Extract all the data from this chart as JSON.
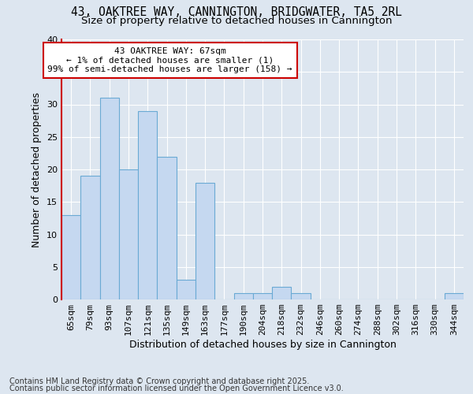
{
  "title_line1": "43, OAKTREE WAY, CANNINGTON, BRIDGWATER, TA5 2RL",
  "title_line2": "Size of property relative to detached houses in Cannington",
  "xlabel": "Distribution of detached houses by size in Cannington",
  "ylabel": "Number of detached properties",
  "categories": [
    "65sqm",
    "79sqm",
    "93sqm",
    "107sqm",
    "121sqm",
    "135sqm",
    "149sqm",
    "163sqm",
    "177sqm",
    "190sqm",
    "204sqm",
    "218sqm",
    "232sqm",
    "246sqm",
    "260sqm",
    "274sqm",
    "288sqm",
    "302sqm",
    "316sqm",
    "330sqm",
    "344sqm"
  ],
  "values": [
    13,
    19,
    31,
    20,
    29,
    22,
    3,
    18,
    0,
    1,
    1,
    2,
    1,
    0,
    0,
    0,
    0,
    0,
    0,
    0,
    1
  ],
  "bar_color": "#c5d8f0",
  "bar_edge_color": "#6aaad4",
  "ylim": [
    0,
    40
  ],
  "yticks": [
    0,
    5,
    10,
    15,
    20,
    25,
    30,
    35,
    40
  ],
  "annotation_box_text": "43 OAKTREE WAY: 67sqm\n← 1% of detached houses are smaller (1)\n99% of semi-detached houses are larger (158) →",
  "annotation_box_color": "#ffffff",
  "annotation_box_edge_color": "#cc0000",
  "red_line_color": "#cc0000",
  "footer_line1": "Contains HM Land Registry data © Crown copyright and database right 2025.",
  "footer_line2": "Contains public sector information licensed under the Open Government Licence v3.0.",
  "background_color": "#dde6f0",
  "plot_background_color": "#dde6f0",
  "grid_color": "#ffffff",
  "title_fontsize": 10.5,
  "subtitle_fontsize": 9.5,
  "axis_label_fontsize": 9,
  "tick_fontsize": 8,
  "annotation_fontsize": 8,
  "footer_fontsize": 7
}
